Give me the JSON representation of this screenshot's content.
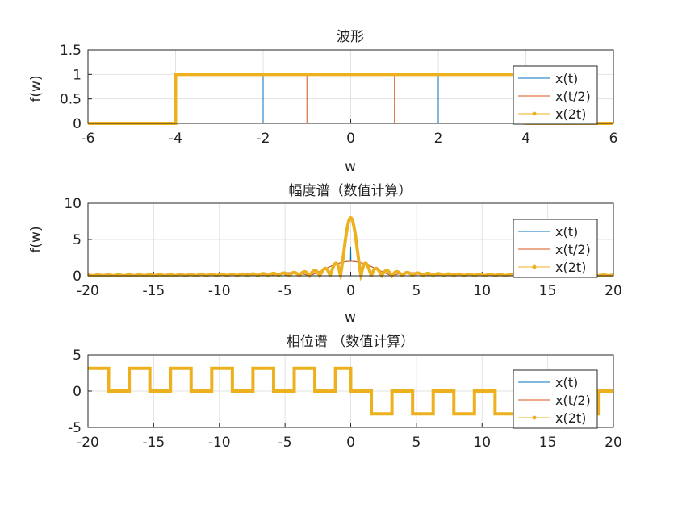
{
  "chart_data": [
    {
      "type": "line",
      "title": "波形",
      "xlabel": "w",
      "ylabel": "f(w)",
      "xlim": [
        -6,
        6
      ],
      "ylim": [
        0,
        1.5
      ],
      "xticks": [
        "-6",
        "-4",
        "-2",
        "0",
        "2",
        "4",
        "6"
      ],
      "yticks": [
        "0",
        "0.5",
        "1",
        "1.5"
      ],
      "grid": true,
      "legend_position": "top-right",
      "legend": [
        "x(t)",
        "x(t/2)",
        "x(2t)"
      ],
      "series": [
        {
          "name": "x(t)",
          "color": "#0072BD",
          "x": [
            -6,
            -2,
            -2,
            2,
            2,
            6
          ],
          "y": [
            0,
            0,
            1,
            1,
            0,
            0
          ]
        },
        {
          "name": "x(t/2)",
          "color": "#D95319",
          "x": [
            -6,
            -1,
            -1,
            1,
            1,
            6
          ],
          "y": [
            0,
            0,
            1,
            1,
            0,
            0
          ]
        },
        {
          "name": "x(2t)",
          "color": "#EDB120",
          "x": [
            -6,
            -4,
            -4,
            4,
            4,
            6
          ],
          "y": [
            0,
            0,
            1,
            1,
            0,
            0
          ]
        }
      ]
    },
    {
      "type": "line",
      "title": "幅度谱（数值计算）",
      "xlabel": "w",
      "ylabel": "f(w)",
      "xlim": [
        -20,
        20
      ],
      "ylim": [
        0,
        10
      ],
      "xticks": [
        "-20",
        "-15",
        "-10",
        "-5",
        "0",
        "5",
        "10",
        "15",
        "20"
      ],
      "yticks": [
        "0",
        "5",
        "10"
      ],
      "grid": true,
      "legend_position": "top-right",
      "legend": [
        "x(t)",
        "x(t/2)",
        "x(2t)"
      ],
      "series": [
        {
          "name": "x(t)",
          "color": "#0072BD",
          "x": [
            -20,
            -3.14,
            -1.57,
            -0.8,
            0,
            0.8,
            1.57,
            3.14,
            20
          ],
          "y": [
            0.1,
            0.0,
            1.27,
            3.0,
            4.0,
            3.0,
            1.27,
            0.0,
            0.1
          ]
        },
        {
          "name": "x(t/2)",
          "color": "#D95319",
          "x": [
            -20,
            -6.28,
            -3.14,
            -1.5,
            0,
            1.5,
            3.14,
            6.28,
            20
          ],
          "y": [
            0.05,
            0.0,
            0.64,
            1.6,
            2.0,
            1.6,
            0.64,
            0.0,
            0.05
          ]
        },
        {
          "name": "x(2t)",
          "color": "#EDB120",
          "x": [
            -20,
            -3,
            -2,
            -1,
            -0.5,
            0,
            0.5,
            1,
            2,
            3,
            20
          ],
          "y": [
            0.1,
            0.35,
            0.7,
            1.9,
            5.5,
            8.0,
            5.5,
            1.9,
            0.7,
            0.35,
            0.1
          ]
        }
      ]
    },
    {
      "type": "line",
      "title": "相位谱 （数值计算）",
      "xlabel": "",
      "ylabel": "",
      "xlim": [
        -20,
        20
      ],
      "ylim": [
        -5,
        5
      ],
      "xticks": [
        "-20",
        "-15",
        "-10",
        "-5",
        "0",
        "5",
        "10",
        "15",
        "20"
      ],
      "yticks": [
        "-5",
        "0",
        "5"
      ],
      "grid": true,
      "legend_position": "top-right",
      "legend": [
        "x(t)",
        "x(t/2)",
        "x(2t)"
      ],
      "series": [
        {
          "name": "x(2t)",
          "color": "#EDB120",
          "left_levels": [
            3.14,
            0
          ],
          "right_levels": [
            0,
            -3.14
          ],
          "period": 1.57
        }
      ]
    }
  ]
}
